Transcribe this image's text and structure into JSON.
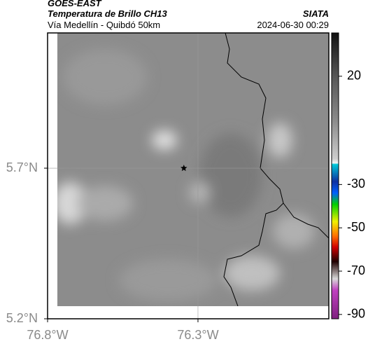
{
  "header": {
    "title": "GOES-EAST",
    "subtitle": "Temperatura de Brillo CH13",
    "route": "Vía Medellín - Quibdó 50km",
    "source": "SIATA",
    "timestamp": "2024-06-30 00:29"
  },
  "map": {
    "xlim": [
      -76.8,
      -75.865
    ],
    "ylim": [
      5.2,
      6.149
    ],
    "xticks": [
      {
        "value": -76.8,
        "label": "76.8°W"
      },
      {
        "value": -76.3,
        "label": "76.3°W"
      }
    ],
    "yticks": [
      {
        "value": 5.2,
        "label": "5.2°N"
      },
      {
        "value": 5.7,
        "label": "5.7°N"
      }
    ],
    "grid": true,
    "marker": {
      "lon": -76.347,
      "lat": 5.7
    }
  },
  "colorbar": {
    "lim": [
      -92,
      40
    ],
    "ticks": [
      20,
      -30,
      -50,
      -70,
      -90
    ]
  }
}
